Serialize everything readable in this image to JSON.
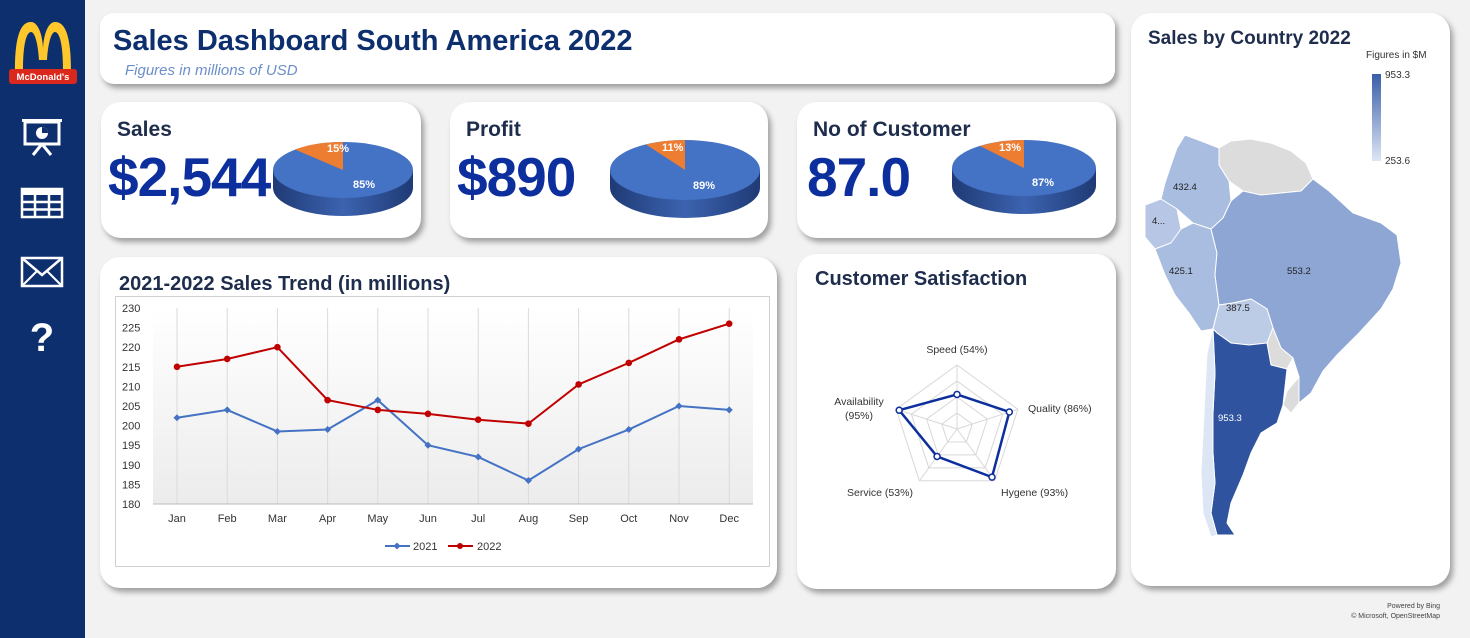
{
  "header": {
    "title": "Sales Dashboard South America 2022",
    "subtitle": "Figures in millions of USD"
  },
  "sidebar": {
    "logo_text": "McDonald's",
    "icons": [
      "presentation-icon",
      "table-icon",
      "mail-icon",
      "help-icon"
    ],
    "help_glyph": "?"
  },
  "colors": {
    "navy": "#0d2f6e",
    "pie_main": "#4472c4",
    "pie_slice": "#ed7d31",
    "series_2021": "#4472c4",
    "series_2022": "#c00000"
  },
  "kpis": [
    {
      "label": "Sales",
      "value": "$2,544",
      "main_pct": "85%",
      "slice_pct": "15%"
    },
    {
      "label": "Profit",
      "value": "$890",
      "main_pct": "89%",
      "slice_pct": "11%"
    },
    {
      "label": "No of Customer",
      "value": "87.0",
      "main_pct": "87%",
      "slice_pct": "13%"
    }
  ],
  "trend": {
    "title": "2021-2022 Sales Trend (in millions)",
    "chart_data": {
      "type": "line",
      "categories": [
        "Jan",
        "Feb",
        "Mar",
        "Apr",
        "May",
        "Jun",
        "Jul",
        "Aug",
        "Sep",
        "Oct",
        "Nov",
        "Dec"
      ],
      "series": [
        {
          "name": "2021",
          "values": [
            202,
            204,
            198.5,
            199,
            206.5,
            195,
            192,
            186,
            194,
            199,
            205,
            204
          ]
        },
        {
          "name": "2022",
          "values": [
            215,
            217,
            220,
            206.5,
            204,
            203,
            201.5,
            200.5,
            210.5,
            216,
            222,
            226
          ]
        }
      ],
      "ylim": [
        180,
        230
      ],
      "yticks": [
        180,
        185,
        190,
        195,
        200,
        205,
        210,
        215,
        220,
        225,
        230
      ],
      "grid": "vertical",
      "legend": "bottom"
    }
  },
  "satisfaction": {
    "title": "Customer Satisfaction",
    "chart_data": {
      "type": "radar",
      "categories": [
        "Speed (54%)",
        "Quality (86%)",
        "Hygene (93%)",
        "Service (53%)",
        "Availability (95%)"
      ],
      "values": [
        54,
        86,
        93,
        53,
        95
      ],
      "max": 100
    },
    "label_lines": {
      "speed": "Speed (54%)",
      "quality": "Quality (86%)",
      "hygene": "Hygene (93%)",
      "service": "Service (53%)",
      "availability_1": "Availability",
      "availability_2": "(95%)"
    }
  },
  "map": {
    "title": "Sales by Country 2022",
    "legend_title": "Figures in $M",
    "legend_max": "953.3",
    "legend_min": "253.6",
    "regions": [
      {
        "name": "Colombia",
        "value": "432.4"
      },
      {
        "name": "Ecuador",
        "value": "4..."
      },
      {
        "name": "Peru",
        "value": "425.1"
      },
      {
        "name": "Brazil",
        "value": "553.2"
      },
      {
        "name": "Bolivia",
        "value": "387.5"
      },
      {
        "name": "Argentina",
        "value": "953.3"
      }
    ],
    "credit_1": "Powered by Bing",
    "credit_2": "© Microsoft, OpenStreetMap"
  }
}
